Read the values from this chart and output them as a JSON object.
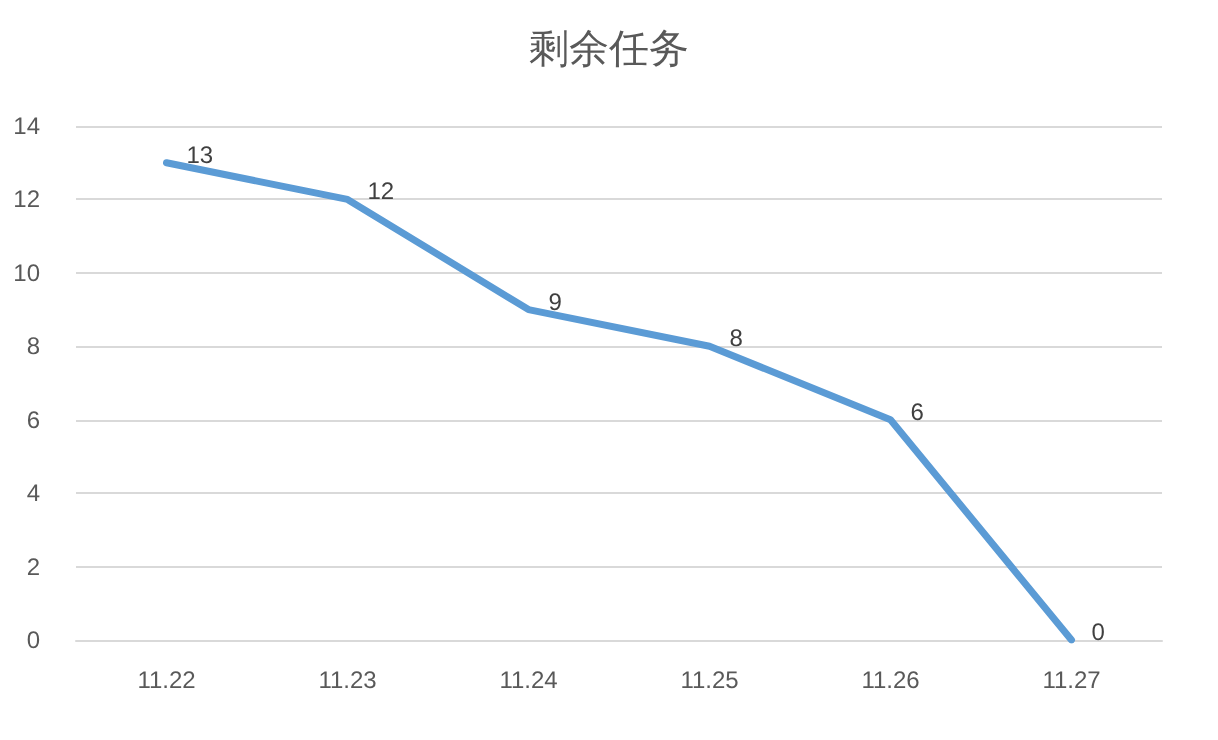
{
  "chart_data": {
    "type": "line",
    "title": "剩余任务",
    "categories": [
      "11.22",
      "11.23",
      "11.24",
      "11.25",
      "11.26",
      "11.27"
    ],
    "series": [
      {
        "color": "#5b9bd5",
        "values": [
          13,
          12,
          9,
          8,
          6,
          0
        ]
      }
    ],
    "ylim": [
      0,
      14
    ],
    "yticks": [
      0,
      2,
      4,
      6,
      8,
      10,
      12,
      14
    ],
    "grid": "y",
    "marker": "none",
    "line_style": "solid",
    "data_labels": true
  }
}
